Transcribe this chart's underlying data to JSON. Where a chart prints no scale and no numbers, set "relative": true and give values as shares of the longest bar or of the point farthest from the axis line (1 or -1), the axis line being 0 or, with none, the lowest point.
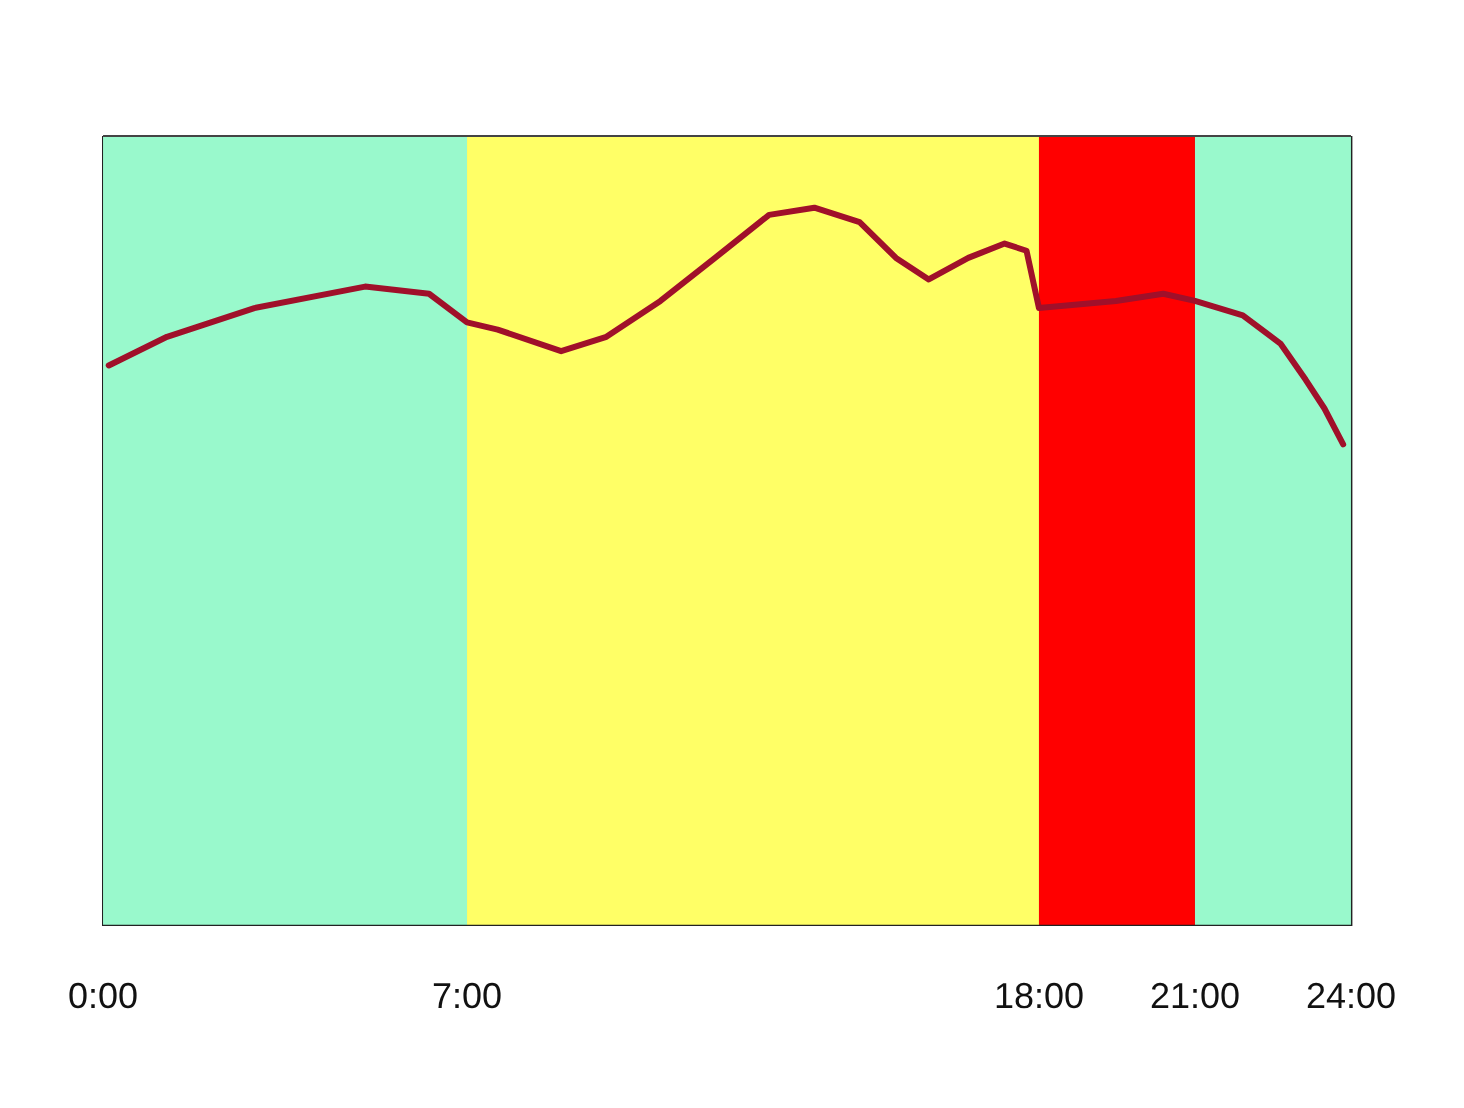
{
  "chart_data": {
    "type": "line",
    "relative": true,
    "x": [
      0.11,
      1.23,
      2.91,
      5.04,
      6.27,
      7,
      7.59,
      8.81,
      9.68,
      10.72,
      11.77,
      12.81,
      13.68,
      14.55,
      15.25,
      15.88,
      16.64,
      17.34,
      17.76,
      18,
      19.48,
      20.39,
      21,
      21.92,
      22.65,
      23.13,
      23.49,
      23.85
    ],
    "series": [
      {
        "color": "#a0102a",
        "values": [
          0.78,
          0.82,
          0.86,
          0.89,
          0.88,
          0.84,
          0.83,
          0.8,
          0.82,
          0.87,
          0.93,
          0.99,
          1,
          0.98,
          0.93,
          0.9,
          0.93,
          0.95,
          0.94,
          0.86,
          0.87,
          0.88,
          0.87,
          0.85,
          0.81,
          0.76,
          0.72,
          0.67
        ]
      }
    ],
    "xlim": [
      0,
      24
    ],
    "xticks": [
      {
        "value": 0,
        "label": "0:00"
      },
      {
        "value": 7,
        "label": "7:00"
      },
      {
        "value": 18,
        "label": "18:00"
      },
      {
        "value": 21,
        "label": "21:00"
      },
      {
        "value": 24,
        "label": "24:00"
      }
    ],
    "bands": [
      {
        "axis": "x",
        "from": 0,
        "to": 7,
        "color": "#99f9cc"
      },
      {
        "axis": "x",
        "from": 7,
        "to": 18,
        "color": "#ffff66"
      },
      {
        "axis": "x",
        "from": 18,
        "to": 21,
        "color": "#ff0000"
      },
      {
        "axis": "x",
        "from": 21,
        "to": 24,
        "color": "#99f9cc"
      }
    ],
    "grid": "x",
    "legend": false,
    "marker": "none",
    "line_style": "solid"
  }
}
